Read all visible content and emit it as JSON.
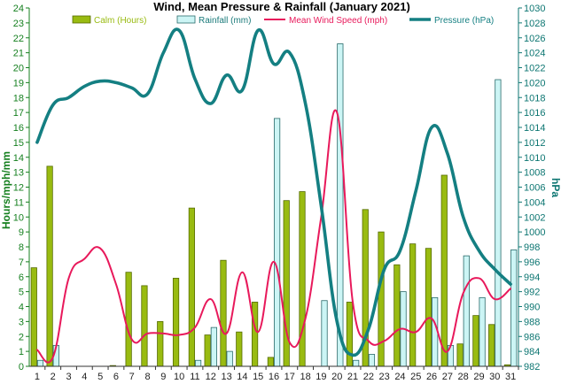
{
  "chart_data": {
    "type": "bar",
    "title": "Wind, Mean Pressure & Rainfall (January 2021)",
    "xlabel": "",
    "ylabel_left": "Hours/mph/mm",
    "ylabel_right": "hPa",
    "categories": [
      "1",
      "2",
      "3",
      "4",
      "5",
      "6",
      "7",
      "8",
      "9",
      "10",
      "11",
      "12",
      "13",
      "14",
      "15",
      "16",
      "17",
      "18",
      "19",
      "20",
      "21",
      "22",
      "23",
      "24",
      "25",
      "26",
      "27",
      "28",
      "29",
      "30",
      "31"
    ],
    "y_left_range": [
      0,
      24
    ],
    "y_left_ticks": [
      "0",
      "1",
      "2",
      "3",
      "4",
      "5",
      "6",
      "7",
      "8",
      "9",
      "10",
      "11",
      "12",
      "13",
      "14",
      "15",
      "16",
      "17",
      "18",
      "19",
      "20",
      "21",
      "22",
      "23",
      "24"
    ],
    "y_right_range": [
      982,
      1030
    ],
    "y_right_ticks": [
      "982",
      "984",
      "986",
      "988",
      "990",
      "992",
      "994",
      "996",
      "998",
      "1000",
      "1002",
      "1004",
      "1006",
      "1008",
      "1010",
      "1012",
      "1014",
      "1016",
      "1018",
      "1020",
      "1022",
      "1024",
      "1026",
      "1028",
      "1030"
    ],
    "grid": false,
    "legend_position": "top",
    "series": [
      {
        "name": "Calm (Hours)",
        "kind": "bar",
        "axis": "left",
        "color": "#99bb11",
        "values": [
          6.6,
          13.4,
          0,
          0,
          0,
          0.05,
          6.3,
          5.4,
          3.0,
          5.9,
          10.6,
          2.1,
          7.1,
          2.3,
          4.3,
          0.6,
          11.1,
          11.7,
          0,
          0,
          4.3,
          10.5,
          9.0,
          6.8,
          8.2,
          7.9,
          12.8,
          1.5,
          3.4,
          2.8,
          0.1
        ]
      },
      {
        "name": "Rainfall (mm)",
        "kind": "bar",
        "axis": "left",
        "color": "#ccf5f5",
        "values": [
          0.4,
          1.4,
          0,
          0,
          0,
          0,
          0,
          0,
          0,
          0,
          0.4,
          2.6,
          1.0,
          0,
          0,
          16.6,
          0,
          0,
          4.4,
          21.6,
          0.4,
          0.8,
          0,
          5.0,
          0,
          4.6,
          1.4,
          7.4,
          4.6,
          19.2,
          7.8
        ]
      },
      {
        "name": "Mean Wind Speed (mph)",
        "kind": "line",
        "axis": "left",
        "color": "#e8195b",
        "values": [
          1.1,
          0.6,
          5.9,
          7.2,
          7.9,
          5.5,
          1.8,
          2.2,
          2.2,
          2.1,
          2.6,
          4.5,
          2.2,
          6.3,
          2.3,
          7.0,
          1.6,
          3.2,
          10.0,
          17.0,
          4.3,
          1.7,
          1.7,
          2.5,
          2.3,
          3.2,
          1.0,
          4.9,
          5.9,
          4.5,
          5.2
        ]
      },
      {
        "name": "Pressure (hPa)",
        "kind": "line",
        "axis": "right",
        "color": "#147f82",
        "values": [
          1012,
          1017,
          1018,
          1019.5,
          1020.2,
          1020,
          1019.3,
          1018.5,
          1024,
          1027,
          1020.5,
          1017.2,
          1021,
          1019,
          1027,
          1022.5,
          1024,
          1017.2,
          1003.5,
          988,
          983.5,
          987,
          995,
          997.5,
          1005.5,
          1014,
          1010.5,
          1002,
          997.5,
          995,
          993
        ]
      }
    ]
  },
  "colors": {
    "left_axis": "#147f1e",
    "right_axis": "#0d7672",
    "tick_text": "#222222"
  }
}
